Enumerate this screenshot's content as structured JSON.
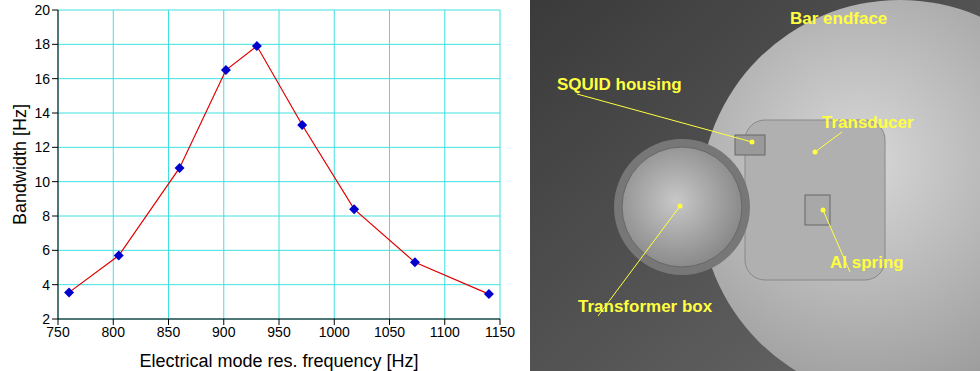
{
  "chart_data": {
    "type": "line",
    "x_label": "Electrical mode res. frequency [Hz]",
    "y_label": "Bandwidth [Hz]",
    "x": [
      760,
      805,
      860,
      902,
      930,
      971,
      1018,
      1073,
      1140
    ],
    "values": [
      3.55,
      5.7,
      10.8,
      16.5,
      17.9,
      13.3,
      8.4,
      5.3,
      3.45
    ],
    "color": "#e00000",
    "marker": "diamond",
    "xlim": [
      750,
      1150
    ],
    "xticks": [
      750,
      800,
      850,
      900,
      950,
      1000,
      1050,
      1100,
      1150
    ],
    "ylim": [
      2,
      20
    ],
    "yticks": [
      2,
      4,
      6,
      8,
      10,
      12,
      14,
      16,
      18,
      20
    ],
    "grid": true
  },
  "photo": {
    "labels": [
      "Bar endface",
      "SQUID housing",
      "Transducer",
      "Al spring",
      "Transformer box"
    ]
  }
}
